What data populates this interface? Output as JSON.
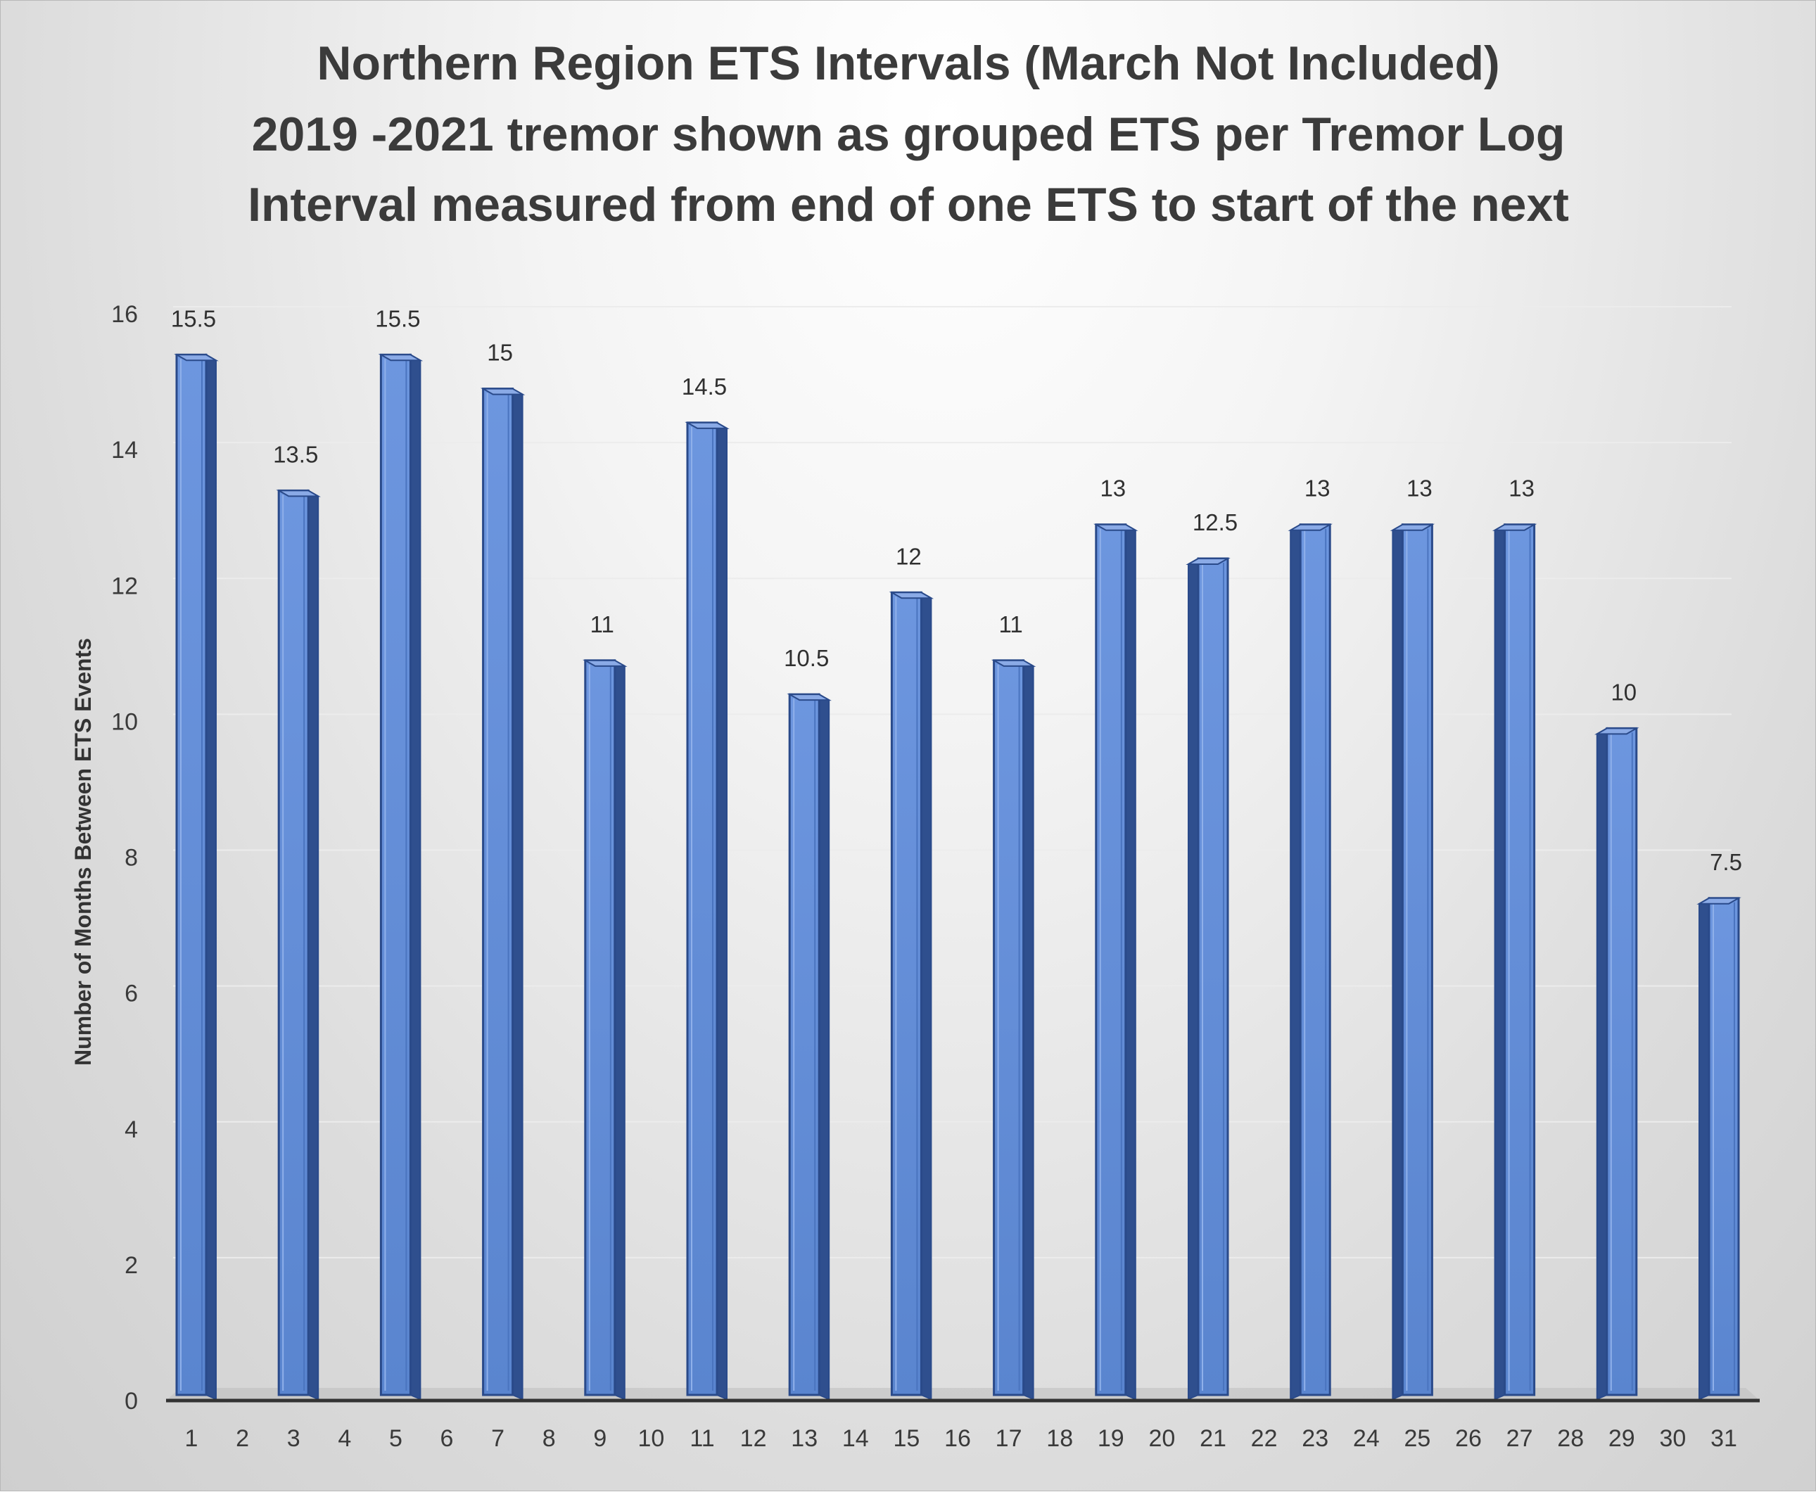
{
  "chart_data": {
    "type": "bar",
    "title_lines": [
      "Northern Region ETS Intervals (March Not Included)",
      "2019 -2021 tremor shown as grouped ETS per Tremor Log",
      "Interval measured from end of one ETS to start of the next"
    ],
    "xlabel": "",
    "ylabel": "Number of Months Between ETS Events",
    "ylim": [
      0,
      16
    ],
    "y_ticks": [
      0,
      2,
      4,
      6,
      8,
      10,
      12,
      14,
      16
    ],
    "categories": [
      "1",
      "2",
      "3",
      "4",
      "5",
      "6",
      "7",
      "8",
      "9",
      "10",
      "11",
      "12",
      "13",
      "14",
      "15",
      "16",
      "17",
      "18",
      "19",
      "20",
      "21",
      "22",
      "23",
      "24",
      "25",
      "26",
      "27",
      "28",
      "29",
      "30",
      "31"
    ],
    "values": [
      15.5,
      null,
      13.5,
      null,
      15.5,
      null,
      15,
      null,
      11,
      null,
      14.5,
      null,
      10.5,
      null,
      12,
      null,
      11,
      null,
      13,
      null,
      12.5,
      null,
      13,
      null,
      13,
      null,
      13,
      null,
      10,
      null,
      7.5
    ],
    "data_labels": [
      "15.5",
      "",
      "13.5",
      "",
      "15.5",
      "",
      "15",
      "",
      "11",
      "",
      "14.5",
      "",
      "10.5",
      "",
      "12",
      "",
      "11",
      "",
      "13",
      "",
      "12.5",
      "",
      "13",
      "",
      "13",
      "",
      "13",
      "",
      "10",
      "",
      "7.5"
    ],
    "grid": true,
    "legend": "none",
    "bar_style": "3d",
    "colors": {
      "bar_front": "#6f97e0",
      "bar_side": "#2f4f8e",
      "bar_edge": "#2a4a8a",
      "axis": "#333333",
      "gridline": "#ececec"
    }
  }
}
